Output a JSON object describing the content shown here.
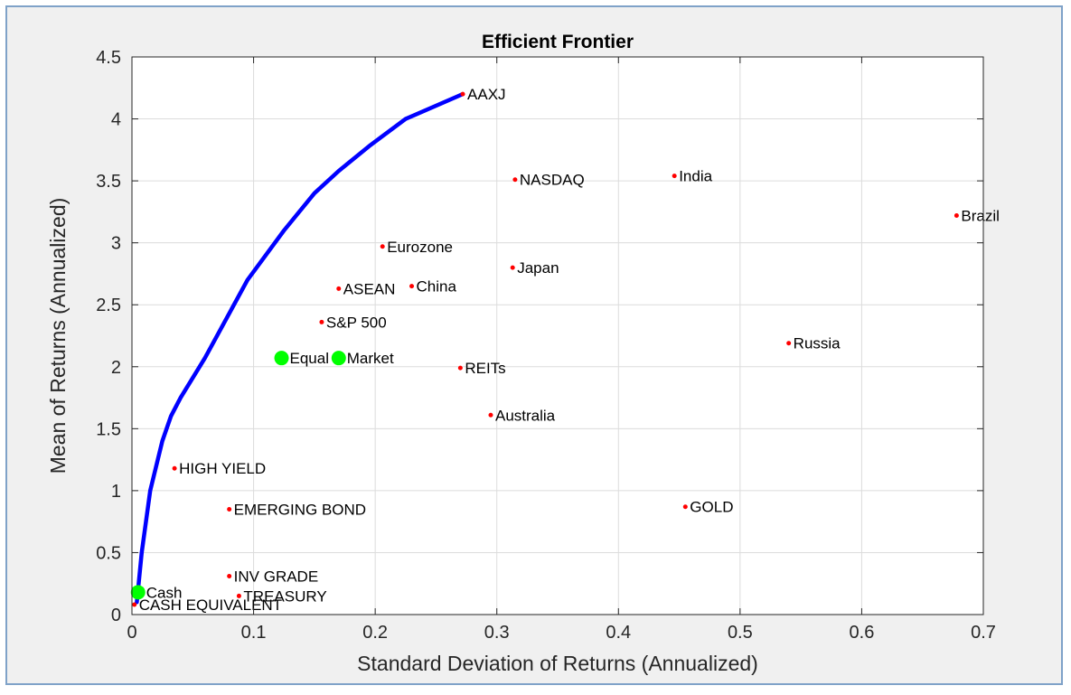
{
  "chart_data": {
    "type": "scatter",
    "title": "Efficient Frontier",
    "xlabel": "Standard Deviation of Returns (Annualized)",
    "ylabel": "Mean of Returns (Annualized)",
    "xlim": [
      0,
      0.7
    ],
    "ylim": [
      0,
      4.5
    ],
    "xticks": [
      0,
      0.1,
      0.2,
      0.3,
      0.4,
      0.5,
      0.6,
      0.7
    ],
    "xtick_labels": [
      "0",
      "0.1",
      "0.2",
      "0.3",
      "0.4",
      "0.5",
      "0.6",
      "0.7"
    ],
    "yticks": [
      0,
      0.5,
      1,
      1.5,
      2,
      2.5,
      3,
      3.5,
      4,
      4.5
    ],
    "ytick_labels": [
      "0",
      "0.5",
      "1",
      "1.5",
      "2",
      "2.5",
      "3",
      "3.5",
      "4",
      "4.5"
    ],
    "grid": true,
    "colors": {
      "frontier": "#0000ff",
      "assets": "#ff0000",
      "portfolios": "#00ff00"
    },
    "frontier": {
      "x": [
        0.004,
        0.008,
        0.015,
        0.025,
        0.032,
        0.04,
        0.06,
        0.095,
        0.125,
        0.15,
        0.17,
        0.195,
        0.225,
        0.272
      ],
      "y": [
        0.1,
        0.5,
        1.0,
        1.4,
        1.6,
        1.75,
        2.07,
        2.7,
        3.1,
        3.4,
        3.58,
        3.78,
        4.0,
        4.2
      ]
    },
    "assets": [
      {
        "label": "AAXJ",
        "x": 0.272,
        "y": 4.2
      },
      {
        "label": "NASDAQ",
        "x": 0.315,
        "y": 3.51
      },
      {
        "label": "India",
        "x": 0.446,
        "y": 3.54
      },
      {
        "label": "Brazil",
        "x": 0.678,
        "y": 3.22
      },
      {
        "label": "Eurozone",
        "x": 0.206,
        "y": 2.97
      },
      {
        "label": "Japan",
        "x": 0.313,
        "y": 2.8
      },
      {
        "label": "ASEAN",
        "x": 0.17,
        "y": 2.63
      },
      {
        "label": "China",
        "x": 0.23,
        "y": 2.65
      },
      {
        "label": "S&P 500",
        "x": 0.156,
        "y": 2.36
      },
      {
        "label": "Russia",
        "x": 0.54,
        "y": 2.19
      },
      {
        "label": "REITs",
        "x": 0.27,
        "y": 1.99
      },
      {
        "label": "Australia",
        "x": 0.295,
        "y": 1.61
      },
      {
        "label": "HIGH YIELD",
        "x": 0.035,
        "y": 1.18
      },
      {
        "label": "EMERGING BOND",
        "x": 0.08,
        "y": 0.85
      },
      {
        "label": "GOLD",
        "x": 0.455,
        "y": 0.87
      },
      {
        "label": "INV GRADE",
        "x": 0.08,
        "y": 0.31
      },
      {
        "label": "TREASURY",
        "x": 0.088,
        "y": 0.15
      },
      {
        "label": "CASH EQUIVALENT",
        "x": 0.002,
        "y": 0.08
      }
    ],
    "portfolios": [
      {
        "label": "Equal",
        "x": 0.123,
        "y": 2.07
      },
      {
        "label": "Market",
        "x": 0.17,
        "y": 2.07
      },
      {
        "label": "Cash",
        "x": 0.005,
        "y": 0.18
      }
    ]
  }
}
